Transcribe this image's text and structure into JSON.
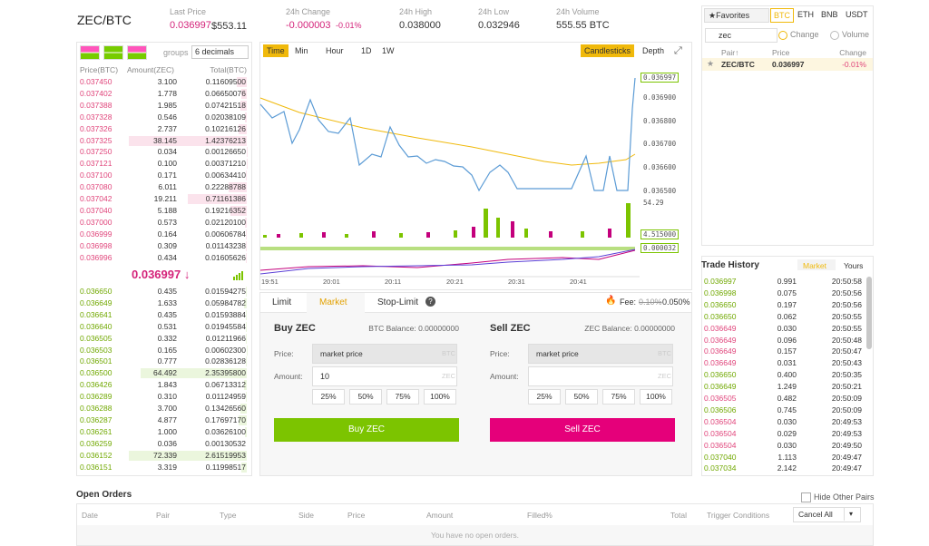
{
  "header": {
    "pair": "ZEC/BTC",
    "stats": [
      {
        "label": "Last Price",
        "value": "0.036997",
        "sub": "$553.11"
      },
      {
        "label": "24h Change",
        "value": "-0.000003",
        "sub": "-0.01%"
      },
      {
        "label": "24h High",
        "value": "0.038000"
      },
      {
        "label": "24h Low",
        "value": "0.032946"
      },
      {
        "label": "24h Volume",
        "value": "555.55 BTC"
      }
    ]
  },
  "orderbook": {
    "groups_label": "groups",
    "groups_value": "6 decimals",
    "columns": [
      "Price(BTC)",
      "Amount(ZEC)",
      "Total(BTC)"
    ],
    "asks": [
      [
        "0.037450",
        "3.100",
        "0.11609500"
      ],
      [
        "0.037402",
        "1.778",
        "0.06650076"
      ],
      [
        "0.037388",
        "1.985",
        "0.07421518"
      ],
      [
        "0.037328",
        "0.546",
        "0.02038109"
      ],
      [
        "0.037326",
        "2.737",
        "0.10216126"
      ],
      [
        "0.037325",
        "38.145",
        "1.42376213"
      ],
      [
        "0.037250",
        "0.034",
        "0.00126650"
      ],
      [
        "0.037121",
        "0.100",
        "0.00371210"
      ],
      [
        "0.037100",
        "0.171",
        "0.00634410"
      ],
      [
        "0.037080",
        "6.011",
        "0.22288788"
      ],
      [
        "0.037042",
        "19.211",
        "0.71161386"
      ],
      [
        "0.037040",
        "5.188",
        "0.19216352"
      ],
      [
        "0.037000",
        "0.573",
        "0.02120100"
      ],
      [
        "0.036999",
        "0.164",
        "0.00606784"
      ],
      [
        "0.036998",
        "0.309",
        "0.01143238"
      ],
      [
        "0.036996",
        "0.434",
        "0.01605626"
      ]
    ],
    "last": "0.036997 ↓",
    "bids": [
      [
        "0.036650",
        "0.435",
        "0.01594275"
      ],
      [
        "0.036649",
        "1.633",
        "0.05984782"
      ],
      [
        "0.036641",
        "0.435",
        "0.01593884"
      ],
      [
        "0.036640",
        "0.531",
        "0.01945584"
      ],
      [
        "0.036505",
        "0.332",
        "0.01211966"
      ],
      [
        "0.036503",
        "0.165",
        "0.00602300"
      ],
      [
        "0.036501",
        "0.777",
        "0.02836128"
      ],
      [
        "0.036500",
        "64.492",
        "2.35395800"
      ],
      [
        "0.036426",
        "1.843",
        "0.06713312"
      ],
      [
        "0.036289",
        "0.310",
        "0.01124959"
      ],
      [
        "0.036288",
        "3.700",
        "0.13426560"
      ],
      [
        "0.036287",
        "4.877",
        "0.17697170"
      ],
      [
        "0.036261",
        "1.000",
        "0.03626100"
      ],
      [
        "0.036259",
        "0.036",
        "0.00130532"
      ],
      [
        "0.036152",
        "72.339",
        "2.61519953"
      ],
      [
        "0.036151",
        "3.319",
        "0.11998517"
      ]
    ]
  },
  "chart": {
    "tabs": [
      "Time",
      "Min",
      "Hour",
      "1D",
      "1W"
    ],
    "views": [
      "Candlesticks",
      "Depth"
    ],
    "price_labels": [
      "0.036997",
      "0.036900",
      "0.036800",
      "0.036700",
      "0.036600",
      "0.036500",
      "54.29",
      "4.515000",
      "0.000032"
    ],
    "time_labels": [
      "19:51",
      "20:01",
      "20:11",
      "20:21",
      "20:31",
      "20:41"
    ]
  },
  "form": {
    "tabs": [
      "Limit",
      "Market",
      "Stop-Limit"
    ],
    "fee_label": "Fee:",
    "fee_old": "0.10%",
    "fee": "0.050%",
    "buy": {
      "title": "Buy ZEC",
      "balance": "BTC Balance: 0.00000000",
      "price_label": "Price:",
      "price_value": "market price",
      "price_unit": "BTC",
      "amount_label": "Amount:",
      "amount_value": "10",
      "amount_unit": "ZEC",
      "percents": [
        "25%",
        "50%",
        "75%",
        "100%"
      ],
      "button": "Buy ZEC"
    },
    "sell": {
      "title": "Sell ZEC",
      "balance": "ZEC Balance: 0.00000000",
      "price_label": "Price:",
      "price_value": "market price",
      "price_unit": "BTC",
      "amount_label": "Amount:",
      "amount_unit": "ZEC",
      "percents": [
        "25%",
        "50%",
        "75%",
        "100%"
      ],
      "button": "Sell ZEC"
    }
  },
  "markets": {
    "favorites": "Favorites",
    "quotes": [
      "BTC",
      "ETH",
      "BNB",
      "USDT"
    ],
    "search": "zec",
    "sort": [
      "Change",
      "Volume"
    ],
    "columns": [
      "Pair↑",
      "Price",
      "Change"
    ],
    "rows": [
      [
        "ZEC/BTC",
        "0.036997",
        "-0.01%"
      ]
    ]
  },
  "trades": {
    "title": "Trade History",
    "tabs": [
      "Market",
      "Yours"
    ],
    "rows": [
      {
        "price": "0.036997",
        "amount": "0.991",
        "time": "20:50:58",
        "color": "#70a800"
      },
      {
        "price": "0.036998",
        "amount": "0.075",
        "time": "20:50:56",
        "color": "#70a800"
      },
      {
        "price": "0.036650",
        "amount": "0.197",
        "time": "20:50:56",
        "color": "#70a800"
      },
      {
        "price": "0.036650",
        "amount": "0.062",
        "time": "20:50:55",
        "color": "#70a800"
      },
      {
        "price": "0.036649",
        "amount": "0.030",
        "time": "20:50:55",
        "color": "#e0457b"
      },
      {
        "price": "0.036649",
        "amount": "0.096",
        "time": "20:50:48",
        "color": "#e0457b"
      },
      {
        "price": "0.036649",
        "amount": "0.157",
        "time": "20:50:47",
        "color": "#e0457b"
      },
      {
        "price": "0.036649",
        "amount": "0.031",
        "time": "20:50:43",
        "color": "#e0457b"
      },
      {
        "price": "0.036650",
        "amount": "0.400",
        "time": "20:50:35",
        "color": "#70a800"
      },
      {
        "price": "0.036649",
        "amount": "1.249",
        "time": "20:50:21",
        "color": "#70a800"
      },
      {
        "price": "0.036505",
        "amount": "0.482",
        "time": "20:50:09",
        "color": "#e0457b"
      },
      {
        "price": "0.036506",
        "amount": "0.745",
        "time": "20:50:09",
        "color": "#70a800"
      },
      {
        "price": "0.036504",
        "amount": "0.030",
        "time": "20:49:53",
        "color": "#e0457b"
      },
      {
        "price": "0.036504",
        "amount": "0.029",
        "time": "20:49:53",
        "color": "#e0457b"
      },
      {
        "price": "0.036504",
        "amount": "0.030",
        "time": "20:49:50",
        "color": "#e0457b"
      },
      {
        "price": "0.037040",
        "amount": "1.113",
        "time": "20:49:47",
        "color": "#70a800"
      },
      {
        "price": "0.037034",
        "amount": "2.142",
        "time": "20:49:47",
        "color": "#70a800"
      }
    ]
  },
  "open_orders": {
    "title": "Open Orders",
    "hide": "Hide Other Pairs",
    "columns": [
      "Date",
      "Pair",
      "Type",
      "Side",
      "Price",
      "Amount",
      "Filled%",
      "Total",
      "Trigger Conditions"
    ],
    "cancel": "Cancel All",
    "empty": "You have no open orders."
  }
}
